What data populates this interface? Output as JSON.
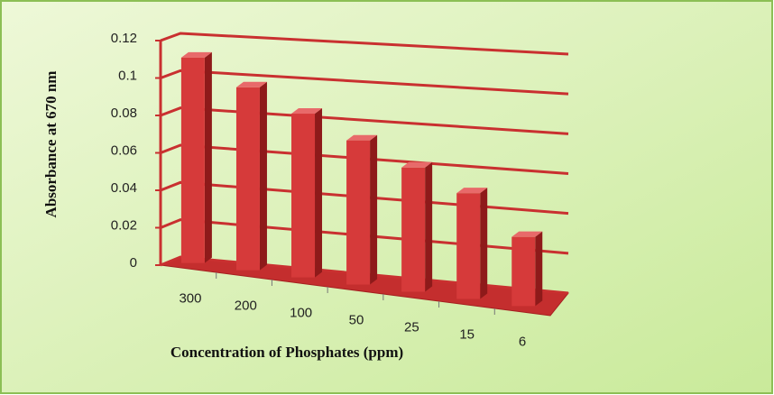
{
  "chart_data": {
    "type": "bar3d",
    "y_label": "Absorbance at 670 nm",
    "x_label": "Concentration of Phosphates (ppm)",
    "categories": [
      "300",
      "200",
      "100",
      "50",
      "25",
      "15",
      "6"
    ],
    "values": [
      0.11,
      0.097,
      0.086,
      0.075,
      0.064,
      0.054,
      0.035
    ],
    "color": "#d63a3a",
    "ylim": [
      0,
      0.12
    ],
    "yticks": [
      0,
      0.02,
      0.04,
      0.06,
      0.08,
      0.1,
      0.12
    ],
    "grid": true
  }
}
